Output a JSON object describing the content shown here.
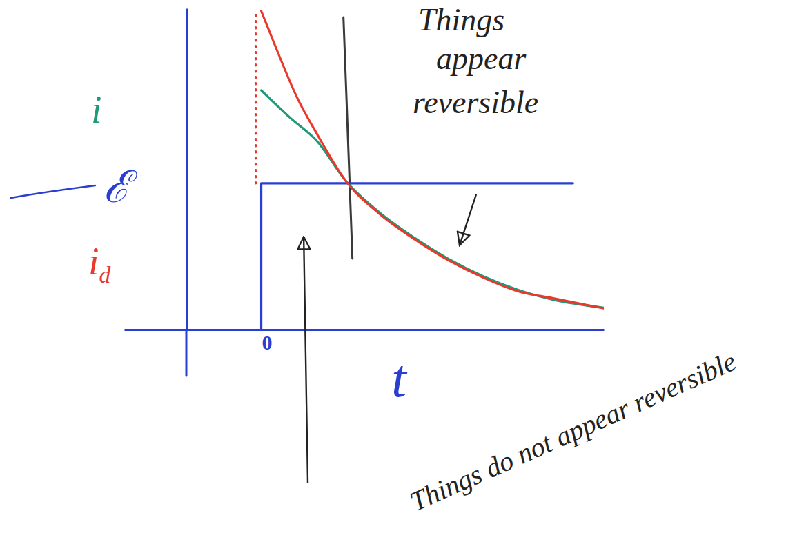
{
  "chart_data": {
    "type": "line",
    "xlabel": "t",
    "xlim": [
      -2,
      5
    ],
    "ylim": [
      0,
      4.7
    ],
    "xticks": [
      0
    ],
    "tick_labels": "x",
    "series": [
      {
        "name": "i",
        "color": "#1e9a78",
        "x": [
          0,
          0.42,
          0.82,
          1.23,
          1.73,
          2.24,
          2.74,
          3.24,
          3.75,
          4.25,
          5.0
        ],
        "values": [
          3.5,
          3.1,
          2.75,
          2.18,
          1.71,
          1.34,
          1.03,
          0.78,
          0.58,
          0.44,
          0.32
        ]
      },
      {
        "name": "ℰ",
        "color": "#2a3fd0",
        "x": [
          0,
          0,
          4.55
        ],
        "values": [
          0,
          2.14,
          2.14
        ]
      },
      {
        "name": "id",
        "color": "#e8392c",
        "x": [
          0,
          0.22,
          0.52,
          0.82,
          1.23,
          1.73,
          2.24,
          2.74,
          3.24,
          3.75,
          4.25,
          5.0
        ],
        "values": [
          4.66,
          4.11,
          3.4,
          2.85,
          2.18,
          1.69,
          1.32,
          1.01,
          0.76,
          0.56,
          0.46,
          0.31
        ]
      },
      {
        "color": "#e8392c",
        "line_style": "dotted",
        "x": [
          -0.08,
          -0.08
        ],
        "values": [
          2.14,
          4.66
        ]
      }
    ],
    "vline": 1.23,
    "annotations": [
      {
        "text": "Things appear reversible",
        "x": 2.9,
        "y": 1.25
      },
      {
        "text": "Things do not appear reversible",
        "x": 0.62,
        "y": 1.34
      }
    ]
  }
}
